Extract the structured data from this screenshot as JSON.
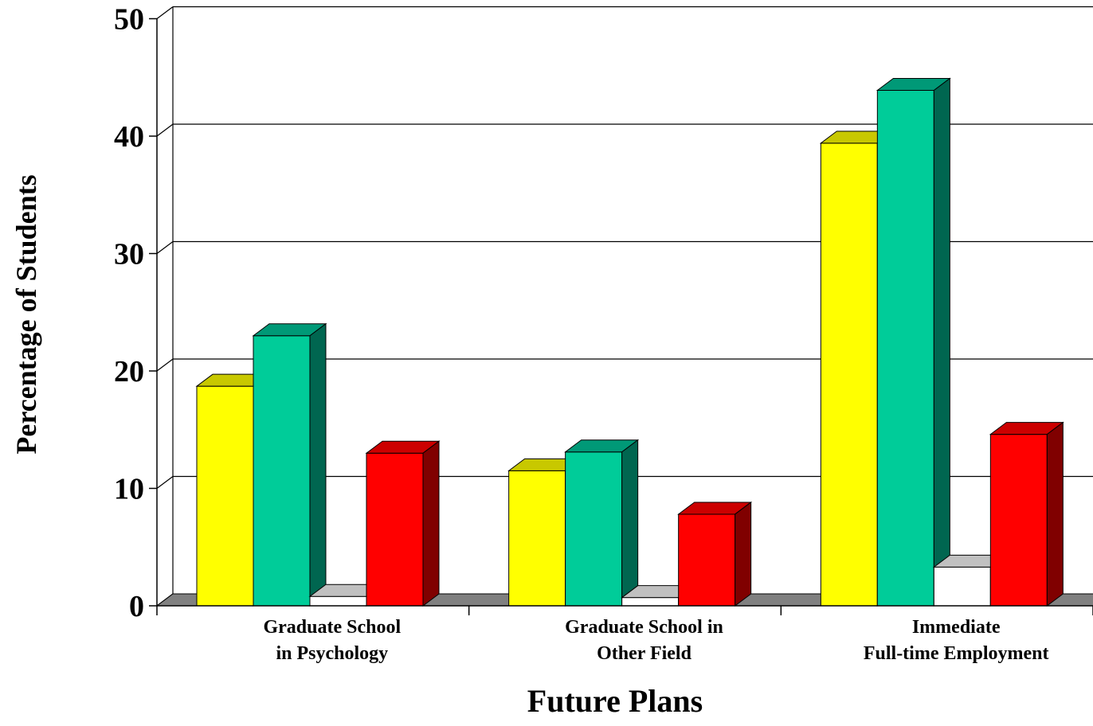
{
  "chart_data": {
    "type": "bar",
    "xlabel": "Future Plans",
    "ylabel": "Percentage of Students",
    "ylim": [
      0,
      50
    ],
    "yticks": [
      0,
      10,
      20,
      30,
      40,
      50
    ],
    "grid": true,
    "categories": [
      [
        "Graduate School",
        "in Psychology"
      ],
      [
        "Graduate School in",
        "Other Field"
      ],
      [
        "Immediate",
        "Full-time Employment"
      ]
    ],
    "series": [
      {
        "values": [
          18.7,
          11.5,
          39.4
        ],
        "color": "#ffff00",
        "top_color": "#c8c800",
        "side_color": "#999900"
      },
      {
        "values": [
          23.0,
          13.1,
          43.9
        ],
        "color": "#00cc99",
        "top_color": "#009977",
        "side_color": "#006650"
      },
      {
        "values": [
          0.8,
          0.7,
          3.3
        ],
        "color": "#ffffff",
        "top_color": "#c0c0c0",
        "side_color": "#a0a0a0"
      },
      {
        "values": [
          13.0,
          7.8,
          14.6
        ],
        "color": "#ff0000",
        "top_color": "#cc0000",
        "side_color": "#800000"
      }
    ]
  }
}
